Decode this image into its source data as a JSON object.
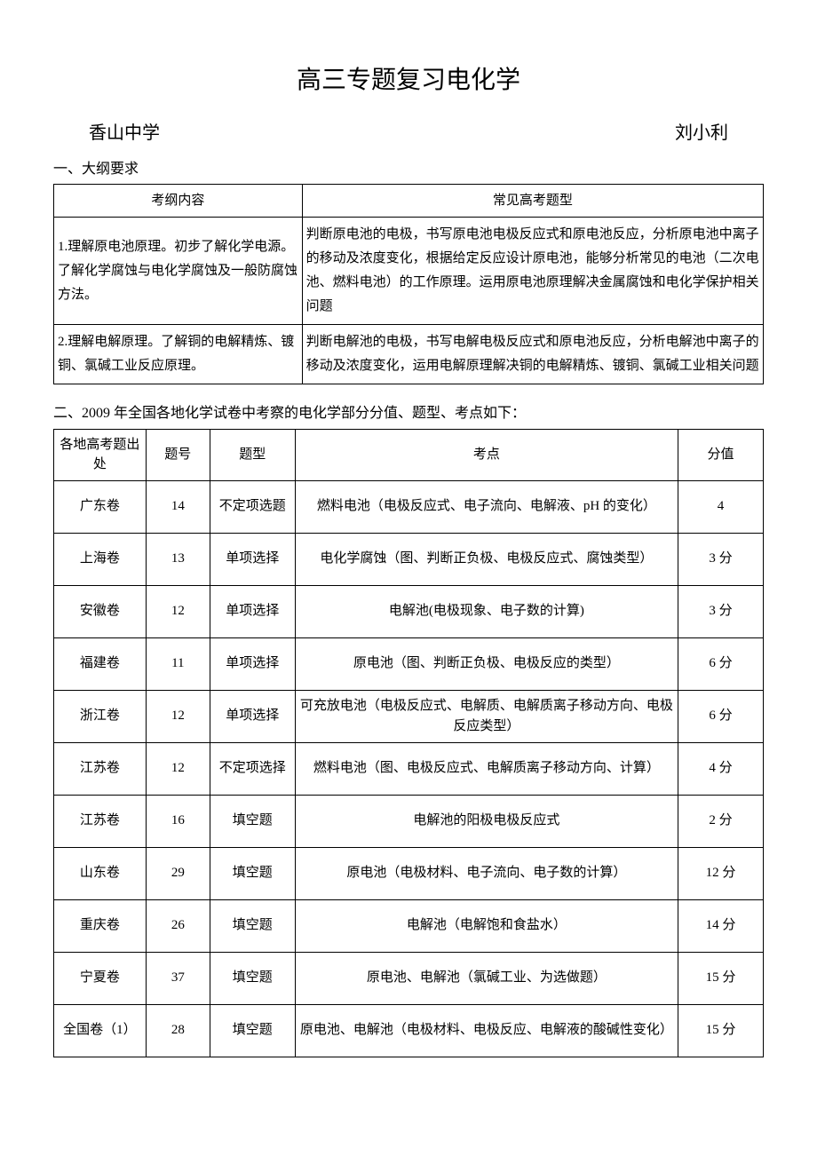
{
  "title": "高三专题复习电化学",
  "school": "香山中学",
  "teacher": "刘小利",
  "section1_header": "一、大纲要求",
  "table1": {
    "headers": [
      "考纲内容",
      "常见高考题型"
    ],
    "rows": [
      {
        "left": "1.理解原电池原理。初步了解化学电源。了解化学腐蚀与电化学腐蚀及一般防腐蚀方法。",
        "right": "判断原电池的电极，书写原电池电极反应式和原电池反应，分析原电池中离子的移动及浓度变化，根据给定反应设计原电池，能够分析常见的电池（二次电池、燃料电池）的工作原理。运用原电池原理解决金属腐蚀和电化学保护相关问题"
      },
      {
        "left": "2.理解电解原理。了解铜的电解精炼、镀铜、氯碱工业反应原理。",
        "right": "判断电解池的电极，书写电解电极反应式和原电池反应，分析电解池中离子的移动及浓度变化，运用电解原理解决铜的电解精炼、镀铜、氯碱工业相关问题"
      }
    ]
  },
  "section2_header": "二、2009 年全国各地化学试卷中考察的电化学部分分值、题型、考点如下：",
  "table2": {
    "headers": [
      "各地高考题出处",
      "题号",
      "题型",
      "考点",
      "分值"
    ],
    "rows": [
      {
        "source": "广东卷",
        "num": "14",
        "type": "不定项选题",
        "topic": "燃料电池（电极反应式、电子流向、电解液、pH 的变化）",
        "score": "4"
      },
      {
        "source": "上海卷",
        "num": "13",
        "type": "单项选择",
        "topic": "电化学腐蚀（图、判断正负极、电极反应式、腐蚀类型）",
        "score": "3 分"
      },
      {
        "source": "安徽卷",
        "num": "12",
        "type": "单项选择",
        "topic": "电解池(电极现象、电子数的计算)",
        "score": "3 分"
      },
      {
        "source": "福建卷",
        "num": "11",
        "type": "单项选择",
        "topic": "原电池（图、判断正负极、电极反应的类型）",
        "score": "6 分"
      },
      {
        "source": "浙江卷",
        "num": "12",
        "type": "单项选择",
        "topic": "可充放电池（电极反应式、电解质、电解质离子移动方向、电极反应类型）",
        "score": "6 分"
      },
      {
        "source": "江苏卷",
        "num": "12",
        "type": "不定项选择",
        "topic": "燃料电池（图、电极反应式、电解质离子移动方向、计算）",
        "score": "4 分"
      },
      {
        "source": "江苏卷",
        "num": "16",
        "type": "填空题",
        "topic": "电解池的阳极电极反应式",
        "score": "2 分"
      },
      {
        "source": "山东卷",
        "num": "29",
        "type": "填空题",
        "topic": "原电池（电极材料、电子流向、电子数的计算）",
        "score": "12 分"
      },
      {
        "source": "重庆卷",
        "num": "26",
        "type": "填空题",
        "topic": "电解池（电解饱和食盐水）",
        "score": "14 分"
      },
      {
        "source": "宁夏卷",
        "num": "37",
        "type": "填空题",
        "topic": "原电池、电解池（氯碱工业、为选做题）",
        "score": "15 分"
      },
      {
        "source": "全国卷（1）",
        "num": "28",
        "type": "填空题",
        "topic": "原电池、电解池（电极材料、电极反应、电解液的酸碱性变化）",
        "score": "15 分"
      }
    ]
  }
}
